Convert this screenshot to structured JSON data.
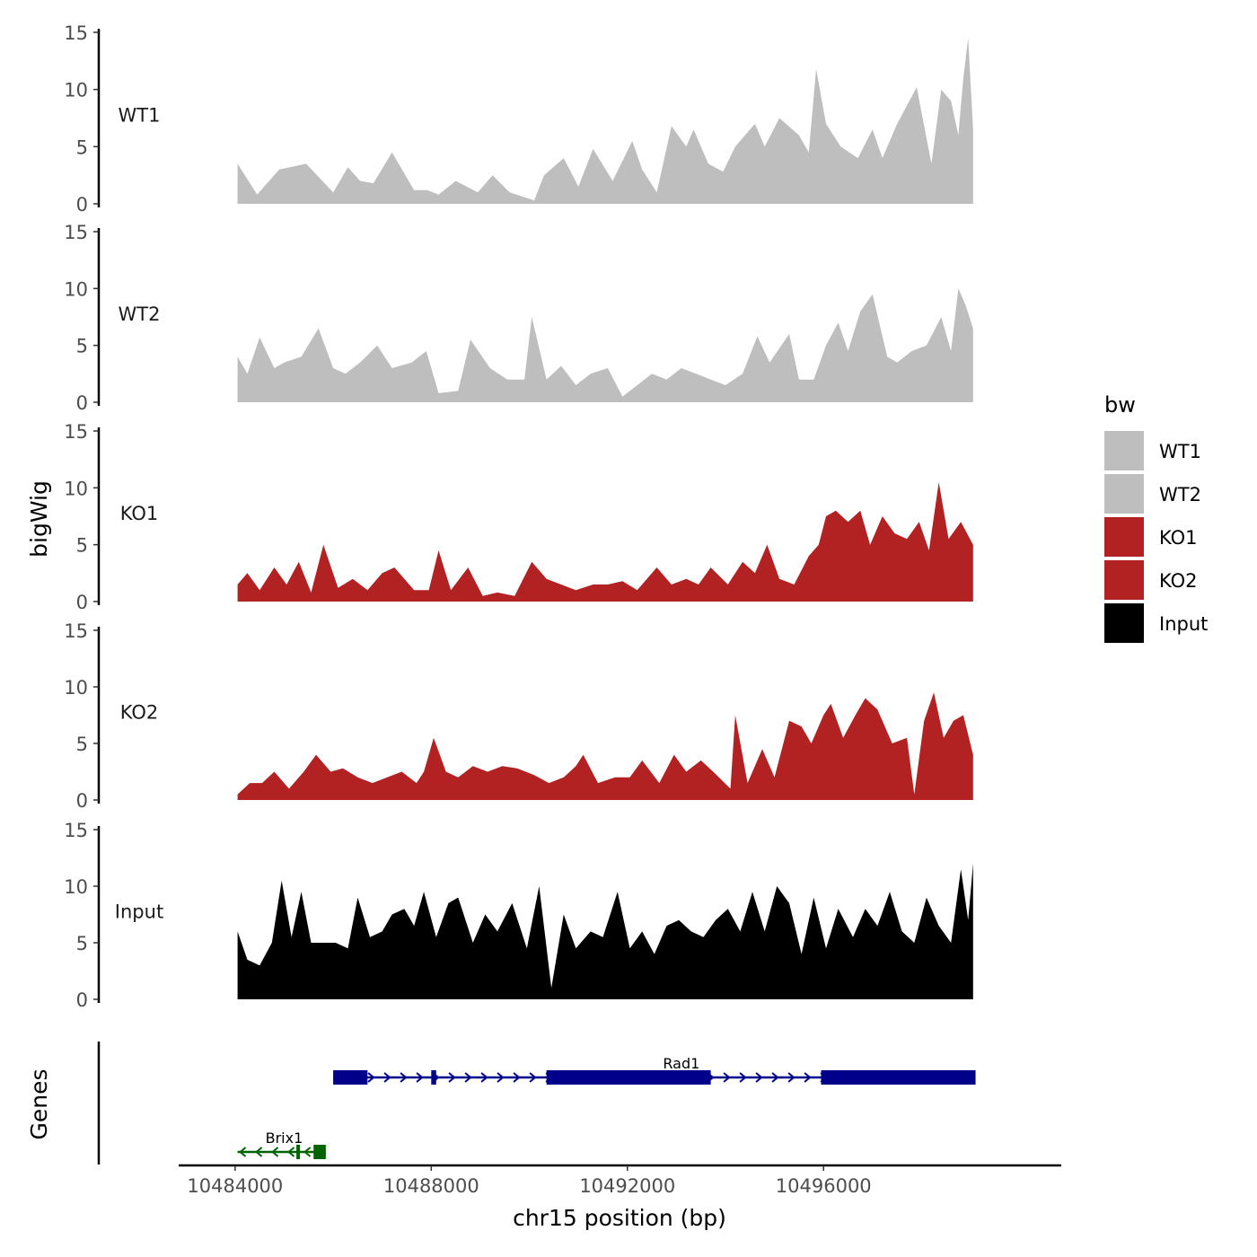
{
  "chart_data": {
    "type": "area",
    "y_axis_label": "bigWig",
    "x_axis_label": "chr15 position (bp)",
    "xlim": [
      10483600,
      10500500
    ],
    "x_ticks": [
      10484000,
      10488000,
      10492000,
      10496000
    ],
    "x_tick_labels": [
      "10484000",
      "10488000",
      "10492000",
      "10496000"
    ],
    "ylim": [
      0,
      15
    ],
    "y_ticks": [
      0,
      5,
      10,
      15
    ],
    "y_tick_labels": [
      "0",
      "5",
      "10",
      "15"
    ],
    "legend": {
      "title": "bw",
      "position": "right",
      "entries": [
        {
          "label": "WT1",
          "color": "#bebebe"
        },
        {
          "label": "WT2",
          "color": "#bebebe"
        },
        {
          "label": "KO1",
          "color": "#b22222"
        },
        {
          "label": "KO2",
          "color": "#b22222"
        },
        {
          "label": "Input",
          "color": "#000000"
        }
      ]
    },
    "series": [
      {
        "name": "WT1",
        "color": "#bebebe",
        "x": [
          10484050,
          10484450,
          10484900,
          10485450,
          10486000,
          10486300,
          10486550,
          10486820,
          10487200,
          10487650,
          10487920,
          10488150,
          10488500,
          10488950,
          10489250,
          10489600,
          10490100,
          10490300,
          10490700,
          10491000,
          10491300,
          10491700,
          10492100,
          10492300,
          10492600,
          10492900,
          10493200,
          10493350,
          10493650,
          10493950,
          10494200,
          10494600,
          10494800,
          10495100,
          10495500,
          10495700,
          10495850,
          10496050,
          10496350,
          10496700,
          10497000,
          10497200,
          10497500,
          10497900,
          10498200,
          10498400,
          10498600,
          10498750,
          10498850,
          10498950,
          10499050
        ],
        "y": [
          3.5,
          0.8,
          3.0,
          3.5,
          1.0,
          3.2,
          2.0,
          1.8,
          4.5,
          1.2,
          1.2,
          0.8,
          2.0,
          1.0,
          2.5,
          1.0,
          0.3,
          2.5,
          4.0,
          1.5,
          4.8,
          2.0,
          5.5,
          3.0,
          1.0,
          6.8,
          5.0,
          6.5,
          3.5,
          2.8,
          5.0,
          7.0,
          5.0,
          7.5,
          6.0,
          4.5,
          11.8,
          7.0,
          5.0,
          4.0,
          6.5,
          4.0,
          7.0,
          10.2,
          3.5,
          10.0,
          9.0,
          6.0,
          11.0,
          14.5,
          6.5
        ]
      },
      {
        "name": "WT2",
        "color": "#bebebe",
        "x": [
          10484050,
          10484250,
          10484500,
          10484800,
          10485000,
          10485350,
          10485700,
          10486000,
          10486250,
          10486550,
          10486900,
          10487200,
          10487600,
          10487900,
          10488150,
          10488550,
          10488800,
          10489200,
          10489550,
          10489900,
          10490050,
          10490350,
          10490650,
          10490950,
          10491250,
          10491600,
          10491900,
          10492200,
          10492500,
          10492800,
          10493100,
          10493400,
          10493700,
          10494000,
          10494350,
          10494650,
          10494900,
          10495300,
          10495500,
          10495800,
          10496050,
          10496300,
          10496500,
          10496750,
          10497000,
          10497300,
          10497500,
          10497800,
          10498100,
          10498400,
          10498600,
          10498750,
          10498900,
          10499050
        ],
        "y": [
          4.0,
          2.5,
          5.7,
          3.0,
          3.5,
          4.0,
          6.5,
          3.0,
          2.5,
          3.5,
          5.0,
          3.0,
          3.5,
          4.5,
          0.8,
          1.0,
          5.5,
          3.0,
          2.0,
          2.0,
          7.5,
          2.0,
          3.2,
          1.5,
          2.5,
          3.0,
          0.5,
          1.5,
          2.5,
          2.0,
          3.0,
          2.5,
          2.0,
          1.5,
          2.5,
          5.8,
          3.5,
          6.0,
          2.0,
          2.0,
          5.0,
          7.0,
          4.5,
          8.0,
          9.5,
          4.0,
          3.5,
          4.5,
          5.0,
          7.5,
          4.5,
          10.0,
          8.5,
          6.5
        ]
      },
      {
        "name": "KO1",
        "color": "#b22222",
        "x": [
          10484050,
          10484250,
          10484500,
          10484800,
          10485050,
          10485300,
          10485550,
          10485800,
          10486100,
          10486400,
          10486700,
          10487000,
          10487250,
          10487650,
          10487950,
          10488150,
          10488400,
          10488750,
          10489050,
          10489350,
          10489700,
          10490050,
          10490350,
          10490650,
          10490950,
          10491300,
          10491600,
          10491900,
          10492200,
          10492600,
          10492900,
          10493200,
          10493450,
          10493700,
          10494050,
          10494350,
          10494600,
          10494850,
          10495100,
          10495400,
          10495700,
          10495900,
          10496050,
          10496250,
          10496500,
          10496750,
          10496950,
          10497200,
          10497450,
          10497700,
          10497950,
          10498150,
          10498350,
          10498550,
          10498800,
          10499050
        ],
        "y": [
          1.5,
          2.5,
          1.0,
          3.0,
          1.5,
          3.5,
          0.8,
          5.0,
          1.2,
          2.0,
          1.0,
          2.5,
          3.0,
          1.0,
          1.0,
          4.5,
          1.0,
          3.0,
          0.5,
          0.8,
          0.5,
          3.5,
          2.0,
          1.5,
          1.0,
          1.5,
          1.5,
          1.8,
          1.0,
          3.0,
          1.5,
          2.0,
          1.5,
          3.0,
          1.5,
          3.5,
          2.5,
          5.0,
          2.0,
          1.5,
          4.0,
          5.0,
          7.5,
          8.0,
          7.0,
          8.0,
          5.0,
          7.5,
          6.0,
          5.5,
          7.0,
          4.5,
          10.5,
          5.5,
          7.0,
          5.0
        ]
      },
      {
        "name": "KO2",
        "color": "#b22222",
        "x": [
          10484050,
          10484300,
          10484550,
          10484800,
          10485100,
          10485400,
          10485650,
          10485950,
          10486200,
          10486500,
          10486800,
          10487100,
          10487400,
          10487700,
          10487850,
          10488050,
          10488300,
          10488550,
          10488850,
          10489150,
          10489450,
          10489750,
          10490100,
          10490400,
          10490700,
          10490950,
          10491100,
          10491400,
          10491750,
          10492050,
          10492300,
          10492650,
          10492950,
          10493200,
          10493500,
          10493750,
          10494100,
          10494200,
          10494450,
          10494750,
          10495000,
          10495300,
          10495550,
          10495750,
          10496000,
          10496150,
          10496400,
          10496650,
          10496850,
          10497100,
          10497400,
          10497700,
          10497850,
          10498050,
          10498250,
          10498450,
          10498650,
          10498850,
          10499050
        ],
        "y": [
          0.5,
          1.5,
          1.5,
          2.5,
          1.0,
          2.5,
          4.0,
          2.5,
          2.8,
          2.0,
          1.5,
          2.0,
          2.5,
          1.5,
          2.5,
          5.5,
          2.5,
          2.0,
          3.0,
          2.5,
          3.0,
          2.8,
          2.2,
          1.5,
          2.0,
          3.0,
          4.0,
          1.5,
          2.0,
          2.0,
          3.5,
          1.5,
          4.0,
          2.5,
          3.5,
          2.5,
          1.0,
          7.5,
          1.5,
          4.5,
          2.0,
          7.0,
          6.5,
          5.0,
          7.5,
          8.5,
          5.5,
          7.5,
          9.0,
          8.0,
          5.0,
          5.5,
          0.5,
          7.0,
          9.5,
          5.5,
          7.0,
          7.5,
          4.0
        ]
      },
      {
        "name": "Input",
        "color": "#000000",
        "x": [
          10484050,
          10484250,
          10484500,
          10484750,
          10484950,
          10485150,
          10485350,
          10485550,
          10485800,
          10486050,
          10486300,
          10486500,
          10486750,
          10487000,
          10487200,
          10487450,
          10487650,
          10487850,
          10488100,
          10488350,
          10488550,
          10488850,
          10489100,
          10489350,
          10489650,
          10489950,
          10490200,
          10490450,
          10490700,
          10490950,
          10491250,
          10491500,
          10491800,
          10492050,
          10492300,
          10492550,
          10492800,
          10493050,
          10493300,
          10493550,
          10493800,
          10494050,
          10494300,
          10494550,
          10494800,
          10495050,
          10495300,
          10495550,
          10495800,
          10496050,
          10496300,
          10496600,
          10496850,
          10497100,
          10497350,
          10497600,
          10497850,
          10498100,
          10498350,
          10498600,
          10498800,
          10498950,
          10499050
        ],
        "y": [
          6.0,
          3.5,
          3.0,
          5.0,
          10.5,
          5.5,
          9.5,
          5.0,
          5.0,
          5.0,
          4.5,
          9.0,
          5.5,
          6.0,
          7.5,
          8.0,
          6.5,
          9.5,
          5.5,
          8.5,
          9.0,
          5.0,
          7.5,
          6.0,
          8.5,
          4.5,
          10.0,
          1.0,
          7.5,
          4.5,
          6.0,
          5.5,
          9.5,
          4.5,
          6.0,
          4.0,
          6.5,
          7.0,
          6.0,
          5.5,
          7.0,
          8.0,
          6.0,
          9.5,
          6.0,
          10.0,
          8.5,
          4.0,
          9.0,
          4.5,
          8.0,
          5.5,
          8.0,
          6.5,
          9.5,
          6.0,
          5.0,
          9.0,
          6.5,
          5.0,
          11.5,
          7.0,
          12.0
        ]
      }
    ],
    "genes": [
      {
        "name": "Rad1",
        "strand": "+",
        "color": "#00008b",
        "start": 10486000,
        "end": 10499100,
        "exons": [
          [
            10486000,
            10486700
          ],
          [
            10488000,
            10488100
          ],
          [
            10490350,
            10493700
          ],
          [
            10495950,
            10499100
          ]
        ]
      },
      {
        "name": "Brix1",
        "strand": "-",
        "color": "#006400",
        "start": 10484050,
        "end": 10485850,
        "exons": [
          [
            10485250,
            10485320
          ],
          [
            10485600,
            10485850
          ]
        ]
      }
    ],
    "genes_track_label": "Genes"
  }
}
